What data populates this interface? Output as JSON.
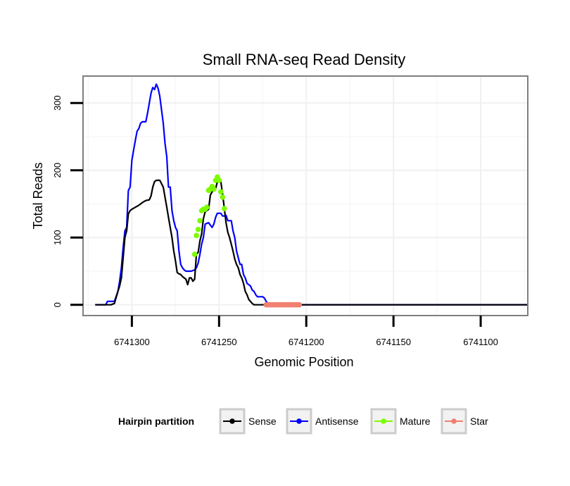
{
  "chart_data": {
    "type": "line",
    "title": "Small RNA-seq Read Density",
    "xlabel": "Genomic Position",
    "ylabel": "Total Reads",
    "x_reversed": true,
    "xlim": [
      6741328,
      6741073
    ],
    "ylim": [
      -16,
      340
    ],
    "x_ticks": [
      6741300,
      6741250,
      6741200,
      6741150,
      6741100
    ],
    "x_tick_labels": [
      "6741300",
      "6741250",
      "6741200",
      "6741150",
      "6741100"
    ],
    "y_ticks": [
      0,
      100,
      200,
      300
    ],
    "y_tick_labels": [
      "0",
      "100",
      "200",
      "300"
    ],
    "grid": true,
    "legend": {
      "title": "Hairpin partition",
      "position": "bottom",
      "entries": [
        "Sense",
        "Antisense",
        "Mature",
        "Star"
      ]
    },
    "colors": {
      "Sense": "#000000",
      "Antisense": "#0000ff",
      "Mature": "#7cfc00",
      "Star": "#f08070"
    },
    "series": [
      {
        "name": "Sense",
        "type": "line",
        "x": [
          6741321,
          6741312,
          6741310,
          6741308,
          6741307,
          6741306,
          6741305,
          6741304,
          6741303,
          6741302,
          6741301,
          6741300,
          6741298,
          6741296,
          6741294,
          6741292,
          6741290,
          6741289,
          6741288,
          6741287,
          6741286,
          6741284,
          6741282,
          6741281,
          6741280,
          6741279,
          6741278,
          6741277,
          6741276,
          6741275,
          6741274,
          6741273,
          6741272,
          6741271,
          6741270,
          6741269,
          6741268,
          6741267,
          6741266,
          6741265,
          6741264,
          6741263,
          6741262,
          6741261,
          6741260,
          6741259,
          6741258,
          6741257,
          6741256,
          6741255,
          6741254,
          6741253,
          6741252,
          6741251,
          6741250,
          6741249,
          6741248,
          6741247,
          6741246,
          6741245,
          6741244,
          6741243,
          6741242,
          6741241,
          6741240,
          6741239,
          6741238,
          6741237,
          6741236,
          6741235,
          6741234,
          6741233,
          6741232,
          6741231,
          6741230,
          6741229,
          6741228,
          6741227,
          6741226,
          6741225,
          6741224,
          6741223,
          6741222,
          6741221,
          6741220,
          6741219,
          6741100,
          6741073
        ],
        "y": [
          0,
          0,
          2,
          20,
          28,
          40,
          70,
          100,
          110,
          135,
          140,
          142,
          145,
          148,
          152,
          155,
          156,
          162,
          175,
          183,
          185,
          185,
          175,
          160,
          145,
          130,
          115,
          100,
          80,
          65,
          48,
          46,
          45,
          42,
          40,
          38,
          30,
          40,
          40,
          35,
          38,
          75,
          78,
          95,
          105,
          128,
          138,
          140,
          142,
          163,
          168,
          170,
          172,
          183,
          188,
          183,
          165,
          143,
          122,
          108,
          100,
          90,
          80,
          68,
          60,
          55,
          45,
          40,
          32,
          20,
          15,
          8,
          5,
          2,
          0,
          0,
          0,
          0,
          0,
          0,
          0,
          0,
          0,
          0,
          0,
          0,
          0,
          0
        ]
      },
      {
        "name": "Antisense",
        "type": "line",
        "x": [
          6741321,
          6741315,
          6741314,
          6741312,
          6741310,
          6741308,
          6741307,
          6741306,
          6741305,
          6741304,
          6741303,
          6741302,
          6741301,
          6741300,
          6741299,
          6741298,
          6741297,
          6741296,
          6741295,
          6741294,
          6741293,
          6741292,
          6741291,
          6741290,
          6741289,
          6741288,
          6741287,
          6741286,
          6741285,
          6741284,
          6741283,
          6741282,
          6741281,
          6741280,
          6741279,
          6741278,
          6741277,
          6741276,
          6741275,
          6741274,
          6741273,
          6741272,
          6741271,
          6741270,
          6741269,
          6741268,
          6741267,
          6741266,
          6741264,
          6741263,
          6741262,
          6741261,
          6741260,
          6741259,
          6741258,
          6741256,
          6741254,
          6741253,
          6741252,
          6741251,
          6741250,
          6741249,
          6741248,
          6741247,
          6741246,
          6741245,
          6741244,
          6741243,
          6741242,
          6741241,
          6741240,
          6741239,
          6741238,
          6741237,
          6741236,
          6741235,
          6741234,
          6741233,
          6741232,
          6741231,
          6741230,
          6741229,
          6741228,
          6741227,
          6741226,
          6741225,
          6741224,
          6741223,
          6741222,
          6741221,
          6741220,
          6741219,
          6741100,
          6741073
        ],
        "y": [
          0,
          0,
          5,
          5,
          5,
          20,
          35,
          55,
          85,
          110,
          115,
          170,
          175,
          215,
          230,
          245,
          258,
          262,
          270,
          272,
          272,
          272,
          285,
          300,
          315,
          323,
          320,
          328,
          322,
          310,
          290,
          270,
          240,
          220,
          175,
          175,
          140,
          125,
          115,
          110,
          80,
          60,
          55,
          52,
          50,
          50,
          50,
          50,
          52,
          55,
          62,
          75,
          90,
          100,
          120,
          122,
          115,
          120,
          130,
          136,
          136,
          136,
          132,
          132,
          133,
          125,
          125,
          125,
          110,
          100,
          80,
          70,
          60,
          60,
          45,
          40,
          32,
          30,
          28,
          22,
          20,
          15,
          12,
          12,
          12,
          12,
          10,
          5,
          2,
          0,
          0,
          0,
          0,
          0
        ]
      },
      {
        "name": "Mature",
        "type": "points",
        "x": [
          6741264,
          6741263,
          6741262,
          6741261,
          6741260,
          6741259,
          6741258,
          6741257,
          6741256,
          6741255,
          6741254,
          6741253,
          6741252,
          6741251,
          6741250,
          6741249,
          6741248,
          6741247
        ],
        "y": [
          75,
          103,
          112,
          125,
          140,
          142,
          142,
          145,
          170,
          172,
          176,
          172,
          185,
          190,
          185,
          168,
          160,
          143
        ]
      },
      {
        "name": "Star",
        "type": "points",
        "x": [
          6741223,
          6741222,
          6741221,
          6741220,
          6741219,
          6741218,
          6741217,
          6741216,
          6741215,
          6741214,
          6741213,
          6741212,
          6741211,
          6741210,
          6741209,
          6741208,
          6741207,
          6741206,
          6741205,
          6741204
        ],
        "y": [
          0,
          0,
          0,
          0,
          0,
          0,
          0,
          0,
          0,
          0,
          0,
          0,
          0,
          0,
          0,
          0,
          0,
          0,
          0,
          0
        ]
      }
    ]
  }
}
